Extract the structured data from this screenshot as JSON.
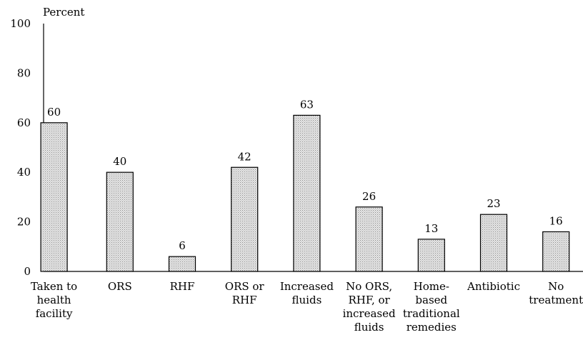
{
  "chart_data": {
    "type": "bar",
    "title": "",
    "xlabel": "",
    "ylabel": "Percent",
    "ylim": [
      0,
      100
    ],
    "yticks": [
      0,
      20,
      40,
      60,
      80,
      100
    ],
    "grid": false,
    "legend": "none",
    "categories": [
      [
        "Taken to",
        "health",
        "facility"
      ],
      [
        "ORS"
      ],
      [
        "RHF"
      ],
      [
        "ORS or",
        "RHF"
      ],
      [
        "Increased",
        "fluids"
      ],
      [
        "No ORS,",
        "RHF, or",
        "increased",
        "fluids"
      ],
      [
        "Home-",
        "based",
        "traditional",
        "remedies"
      ],
      [
        "Antibiotic"
      ],
      [
        "No",
        "treatment"
      ]
    ],
    "values": [
      60,
      40,
      6,
      42,
      63,
      26,
      13,
      23,
      16
    ],
    "colors": {
      "bar_fill": "#d9d9d9",
      "bar_stroke": "#000000",
      "axis": "#000000"
    }
  }
}
